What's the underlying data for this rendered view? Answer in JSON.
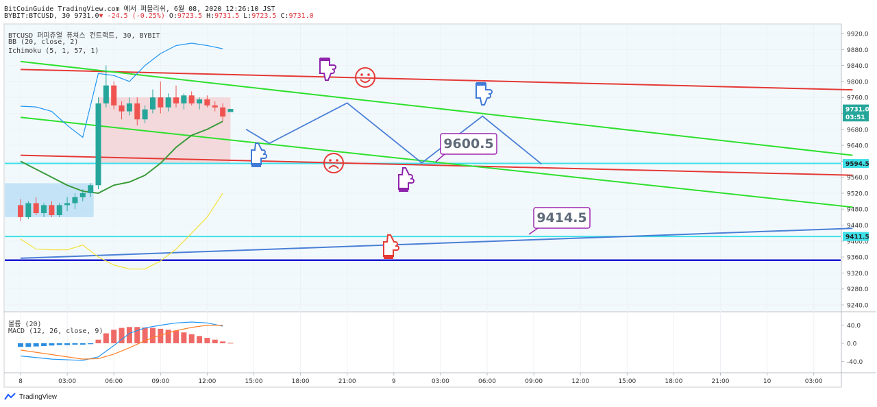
{
  "header": {
    "line1": "BitCoinGuide TradingView.com 에서 퍼블리쉬, 6월 08, 2020 12:26:10 JST",
    "symbol": "BYBIT:BTCUSD, 30",
    "last": "9731.0",
    "arrow": "▼",
    "change": "-24.5 (-0.25%)",
    "o_label": "O:",
    "o": "9723.5",
    "h_label": "H:",
    "h": "9731.5",
    "l_label": "L:",
    "l": "9723.5",
    "c_label": "C:",
    "c": "9731.0"
  },
  "legend": {
    "title": "BTCUSD 퍼피츄얼 퓨쳐스 컨트랙트, 30, BYBIT",
    "bb": "BB (20, close, 2)",
    "ichimoku": "Ichimoku (5, 1, 57, 1)",
    "volume": "볼륨 (20)",
    "macd": "MACD (12, 26, close, 9)"
  },
  "colors": {
    "up": "#26a69a",
    "down": "#ef5350",
    "red_line": "#e53935",
    "green_line": "#2ee02e",
    "cyan_line": "#3fe0e8",
    "blue_line": "#1a1ad0",
    "trend_blue": "#4a7fd6",
    "price_badge": "#26a69a",
    "label_border": "#9c27b0",
    "yellow_line": "#f3e23a",
    "bb_line": "#2196f3",
    "grid": "#eef1f5"
  },
  "footer": {
    "brand": "TradingView"
  },
  "chart_data": {
    "type": "candlestick",
    "price_axis": {
      "ticks": [
        9920,
        9880,
        9840,
        9800,
        9760,
        9720,
        9680,
        9640,
        9600,
        9560,
        9520,
        9480,
        9440,
        9400,
        9360,
        9320,
        9280,
        9240
      ],
      "labels": [
        "9920.0",
        "9880.0",
        "9840.0",
        "9800.0",
        "9760.0",
        "9720.0",
        "9680.0",
        "9640.0",
        "9600.0",
        "9560.0",
        "9520.0",
        "9480.0",
        "9440.0",
        "9400.0",
        "9360.0",
        "9320.0",
        "9280.0",
        "9240.0"
      ]
    },
    "macd_axis": {
      "labels": [
        "40.0",
        "0.0",
        "-40.0"
      ],
      "values": [
        40,
        0,
        -40
      ]
    },
    "time_axis": {
      "labels": [
        "8",
        "03:00",
        "06:00",
        "09:00",
        "12:00",
        "15:00",
        "18:00",
        "21:00",
        "9",
        "03:00",
        "06:00",
        "09:00",
        "12:00",
        "15:00",
        "18:00",
        "21:00",
        "10",
        "03:00"
      ],
      "hours": [
        0,
        3,
        6,
        9,
        12,
        15,
        18,
        21,
        24,
        27,
        30,
        33,
        36,
        39,
        42,
        45,
        48,
        51
      ]
    },
    "price_labels": [
      {
        "text": "9731.0",
        "value": 9731,
        "color": "#26a69a"
      },
      {
        "text": "03:51",
        "value": 9711,
        "color": "#26a69a"
      },
      {
        "text": "9594.5",
        "value": 9594.5,
        "color": "#3fe0e8"
      },
      {
        "text": "9411.5",
        "value": 9411.5,
        "color": "#3fe0e8"
      }
    ],
    "annotations": [
      {
        "text": "9600.5",
        "value": 9600.5
      },
      {
        "text": "9414.5",
        "value": 9414.5
      }
    ],
    "candles": [
      {
        "t": 0.0,
        "o": 9490,
        "h": 9505,
        "l": 9450,
        "c": 9460
      },
      {
        "t": 0.5,
        "o": 9460,
        "h": 9500,
        "l": 9455,
        "c": 9495
      },
      {
        "t": 1.0,
        "o": 9495,
        "h": 9510,
        "l": 9465,
        "c": 9470
      },
      {
        "t": 1.5,
        "o": 9470,
        "h": 9495,
        "l": 9460,
        "c": 9490
      },
      {
        "t": 2.0,
        "o": 9490,
        "h": 9500,
        "l": 9460,
        "c": 9465
      },
      {
        "t": 2.5,
        "o": 9465,
        "h": 9495,
        "l": 9460,
        "c": 9490
      },
      {
        "t": 3.0,
        "o": 9490,
        "h": 9510,
        "l": 9475,
        "c": 9495
      },
      {
        "t": 3.5,
        "o": 9495,
        "h": 9520,
        "l": 9480,
        "c": 9510
      },
      {
        "t": 4.0,
        "o": 9510,
        "h": 9530,
        "l": 9500,
        "c": 9520
      },
      {
        "t": 4.5,
        "o": 9520,
        "h": 9545,
        "l": 9510,
        "c": 9540
      },
      {
        "t": 5.0,
        "o": 9540,
        "h": 9760,
        "l": 9530,
        "c": 9745
      },
      {
        "t": 5.5,
        "o": 9745,
        "h": 9840,
        "l": 9735,
        "c": 9790
      },
      {
        "t": 6.0,
        "o": 9790,
        "h": 9800,
        "l": 9730,
        "c": 9740
      },
      {
        "t": 6.5,
        "o": 9740,
        "h": 9750,
        "l": 9705,
        "c": 9725
      },
      {
        "t": 7.0,
        "o": 9725,
        "h": 9760,
        "l": 9715,
        "c": 9745
      },
      {
        "t": 7.5,
        "o": 9745,
        "h": 9760,
        "l": 9690,
        "c": 9705
      },
      {
        "t": 8.0,
        "o": 9705,
        "h": 9740,
        "l": 9695,
        "c": 9730
      },
      {
        "t": 8.5,
        "o": 9730,
        "h": 9780,
        "l": 9720,
        "c": 9760
      },
      {
        "t": 9.0,
        "o": 9760,
        "h": 9800,
        "l": 9720,
        "c": 9735
      },
      {
        "t": 9.5,
        "o": 9735,
        "h": 9770,
        "l": 9725,
        "c": 9760
      },
      {
        "t": 10.0,
        "o": 9760,
        "h": 9790,
        "l": 9735,
        "c": 9745
      },
      {
        "t": 10.5,
        "o": 9745,
        "h": 9770,
        "l": 9730,
        "c": 9765
      },
      {
        "t": 11.0,
        "o": 9765,
        "h": 9775,
        "l": 9740,
        "c": 9745
      },
      {
        "t": 11.5,
        "o": 9745,
        "h": 9760,
        "l": 9730,
        "c": 9755
      },
      {
        "t": 12.0,
        "o": 9755,
        "h": 9765,
        "l": 9735,
        "c": 9740
      },
      {
        "t": 12.5,
        "o": 9740,
        "h": 9750,
        "l": 9725,
        "c": 9735
      },
      {
        "t": 13.0,
        "o": 9735,
        "h": 9745,
        "l": 9700,
        "c": 9712
      },
      {
        "t": 13.5,
        "o": 9723.5,
        "h": 9731.5,
        "l": 9723.5,
        "c": 9731
      }
    ],
    "macd_hist": [
      -8,
      -8,
      -7,
      -6,
      -5,
      -4,
      -4,
      -3,
      -3,
      -2,
      8,
      22,
      30,
      34,
      36,
      36,
      35,
      34,
      32,
      30,
      28,
      24,
      20,
      16,
      12,
      8,
      4,
      1
    ],
    "horizontal_lines": [
      {
        "name": "support-9594",
        "value": 9594.5,
        "color": "#3fe0e8"
      },
      {
        "name": "support-9411",
        "value": 9411.5,
        "color": "#3fe0e8"
      },
      {
        "name": "base-blue",
        "value": 9352,
        "color": "#1a1ad0"
      }
    ],
    "trend_lines": [
      {
        "name": "red-upper",
        "color": "#e53935",
        "from": [
          0,
          9830
        ],
        "to": [
          53.5,
          9779
        ]
      },
      {
        "name": "red-lower",
        "color": "#e53935",
        "from": [
          0,
          9615
        ],
        "to": [
          53.5,
          9565
        ]
      },
      {
        "name": "green-upper",
        "color": "#2ee02e",
        "from": [
          0,
          9850
        ],
        "to": [
          53.5,
          9615
        ]
      },
      {
        "name": "green-lower",
        "color": "#2ee02e",
        "from": [
          0,
          9710
        ],
        "to": [
          53.5,
          9485
        ]
      },
      {
        "name": "blue-rising",
        "color": "#4a7fd6",
        "from": [
          0,
          9357
        ],
        "to": [
          53.5,
          9432
        ]
      }
    ],
    "projection_path": [
      [
        14.5,
        9680
      ],
      [
        16,
        9645
      ],
      [
        21,
        9746
      ],
      [
        25.8,
        9596
      ],
      [
        29.7,
        9713
      ],
      [
        33.5,
        9593
      ]
    ],
    "bb_upper": [
      [
        0,
        9738
      ],
      [
        1,
        9736
      ],
      [
        2,
        9725
      ],
      [
        3,
        9690
      ],
      [
        4,
        9660
      ],
      [
        5,
        9820
      ],
      [
        6,
        9815
      ],
      [
        7,
        9800
      ],
      [
        8,
        9840
      ],
      [
        9,
        9870
      ],
      [
        10,
        9890
      ],
      [
        11,
        9896
      ],
      [
        12,
        9890
      ],
      [
        13,
        9882
      ]
    ],
    "bb_lower": [
      [
        0,
        9405
      ],
      [
        1,
        9380
      ],
      [
        2,
        9378
      ],
      [
        3,
        9378
      ],
      [
        4,
        9390
      ],
      [
        5,
        9360
      ],
      [
        6,
        9340
      ],
      [
        7,
        9330
      ],
      [
        8,
        9330
      ],
      [
        9,
        9350
      ],
      [
        10,
        9380
      ],
      [
        11,
        9420
      ],
      [
        12,
        9460
      ],
      [
        13,
        9520
      ]
    ],
    "ichimoku_green": [
      [
        0,
        9600
      ],
      [
        1,
        9580
      ],
      [
        2,
        9560
      ],
      [
        3,
        9540
      ],
      [
        4,
        9525
      ],
      [
        5,
        9520
      ],
      [
        6,
        9540
      ],
      [
        7,
        9548
      ],
      [
        8,
        9565
      ],
      [
        9,
        9595
      ],
      [
        10,
        9635
      ],
      [
        11,
        9665
      ],
      [
        12,
        9680
      ],
      [
        13,
        9700
      ]
    ],
    "macd_line": [
      [
        0,
        -28
      ],
      [
        2,
        -35
      ],
      [
        4,
        -38
      ],
      [
        5,
        -30
      ],
      [
        6,
        -5
      ],
      [
        7,
        22
      ],
      [
        8,
        34
      ],
      [
        9,
        40
      ],
      [
        10,
        45
      ],
      [
        11,
        47
      ],
      [
        12,
        45
      ],
      [
        13,
        38
      ]
    ],
    "signal_line": [
      [
        0,
        -15
      ],
      [
        2,
        -25
      ],
      [
        4,
        -35
      ],
      [
        5,
        -34
      ],
      [
        6,
        -24
      ],
      [
        7,
        -10
      ],
      [
        8,
        6
      ],
      [
        9,
        18
      ],
      [
        10,
        28
      ],
      [
        11,
        35
      ],
      [
        12,
        40
      ],
      [
        13,
        40
      ]
    ]
  }
}
